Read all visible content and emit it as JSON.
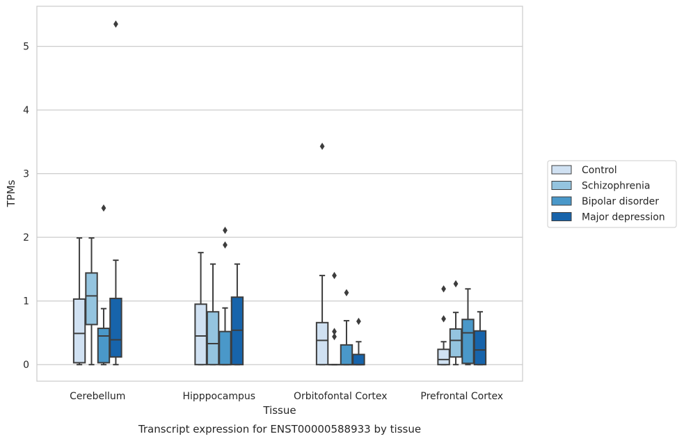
{
  "chart_data": {
    "type": "boxplot",
    "caption": "Transcript expression for ENST00000588933 by tissue",
    "xlabel": "Tissue",
    "ylabel": "TPMs",
    "ylim": [
      -0.26,
      5.63
    ],
    "yticks": [
      0,
      1,
      2,
      3,
      4,
      5
    ],
    "grid": "horizontal",
    "legend_position": "right",
    "categories": [
      "Cerebellum",
      "Hipppocampus",
      "Orbitofontal Cortex",
      "Prefrontal Cortex"
    ],
    "series": [
      {
        "name": "Control",
        "color": "#d0e1f2",
        "boxes": [
          {
            "whislo": 0.0,
            "q1": 0.03,
            "med": 0.49,
            "q3": 1.03,
            "whishi": 1.99,
            "fliers": []
          },
          {
            "whislo": 0.0,
            "q1": 0.0,
            "med": 0.45,
            "q3": 0.95,
            "whishi": 1.76,
            "fliers": []
          },
          {
            "whislo": 0.0,
            "q1": 0.0,
            "med": 0.38,
            "q3": 0.66,
            "whishi": 1.4,
            "fliers": [
              3.43
            ]
          },
          {
            "whislo": 0.0,
            "q1": 0.0,
            "med": 0.08,
            "q3": 0.24,
            "whishi": 0.36,
            "fliers": [
              0.72,
              1.19
            ]
          }
        ]
      },
      {
        "name": "Schizophrenia",
        "color": "#94c4df",
        "boxes": [
          {
            "whislo": 0.0,
            "q1": 0.63,
            "med": 1.08,
            "q3": 1.44,
            "whishi": 1.99,
            "fliers": []
          },
          {
            "whislo": 0.0,
            "q1": 0.0,
            "med": 0.33,
            "q3": 0.83,
            "whishi": 1.58,
            "fliers": []
          },
          {
            "whislo": 0.0,
            "q1": 0.0,
            "med": 0.0,
            "q3": 0.0,
            "whishi": 0.0,
            "fliers": [
              0.44,
              0.52,
              1.4
            ]
          },
          {
            "whislo": 0.0,
            "q1": 0.12,
            "med": 0.38,
            "q3": 0.56,
            "whishi": 0.82,
            "fliers": [
              1.27
            ]
          }
        ]
      },
      {
        "name": "Bipolar disorder",
        "color": "#4a98c9",
        "boxes": [
          {
            "whislo": 0.0,
            "q1": 0.03,
            "med": 0.45,
            "q3": 0.57,
            "whishi": 0.88,
            "fliers": [
              2.46
            ]
          },
          {
            "whislo": 0.0,
            "q1": 0.0,
            "med": 0.0,
            "q3": 0.52,
            "whishi": 0.89,
            "fliers": [
              1.88,
              2.11
            ]
          },
          {
            "whislo": 0.0,
            "q1": 0.0,
            "med": 0.0,
            "q3": 0.31,
            "whishi": 0.69,
            "fliers": [
              1.13
            ]
          },
          {
            "whislo": 0.0,
            "q1": 0.02,
            "med": 0.5,
            "q3": 0.71,
            "whishi": 1.19,
            "fliers": []
          }
        ]
      },
      {
        "name": "Major depression",
        "color": "#1764ab",
        "boxes": [
          {
            "whislo": 0.0,
            "q1": 0.12,
            "med": 0.39,
            "q3": 1.04,
            "whishi": 1.64,
            "fliers": [
              5.35
            ]
          },
          {
            "whislo": 0.0,
            "q1": 0.0,
            "med": 0.54,
            "q3": 1.06,
            "whishi": 1.58,
            "fliers": []
          },
          {
            "whislo": 0.0,
            "q1": 0.0,
            "med": 0.0,
            "q3": 0.16,
            "whishi": 0.36,
            "fliers": [
              0.68
            ]
          },
          {
            "whislo": 0.0,
            "q1": 0.0,
            "med": 0.23,
            "q3": 0.53,
            "whishi": 0.83,
            "fliers": []
          }
        ]
      }
    ]
  }
}
